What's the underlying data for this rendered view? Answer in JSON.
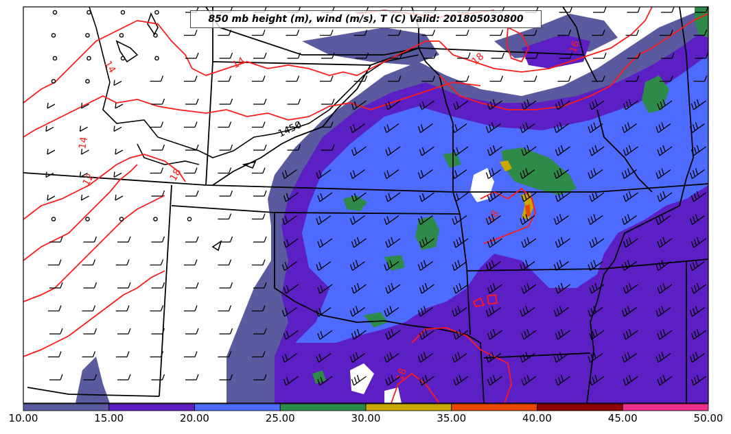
{
  "title": "850 mb height (m), wind (m/s), T (C) Valid: 201805030800",
  "colorbar": {
    "ticks": [
      "10.00",
      "15.00",
      "20.00",
      "25.00",
      "30.00",
      "35.00",
      "40.00",
      "45.00",
      "50.00"
    ],
    "colors": [
      "#5a5a9e",
      "#5b1fc4",
      "#4d6bff",
      "#2d8a49",
      "#c9a800",
      "#e84800",
      "#8f0000",
      "#f0308f"
    ]
  },
  "contour_labels": {
    "height": [
      "1450"
    ],
    "temperature": [
      "14",
      "14",
      "18",
      "18",
      "16",
      "14",
      "12",
      "18",
      "18"
    ]
  },
  "colors": {
    "temperature_contour": "#ff1a1a",
    "state_borders": "#000000"
  }
}
